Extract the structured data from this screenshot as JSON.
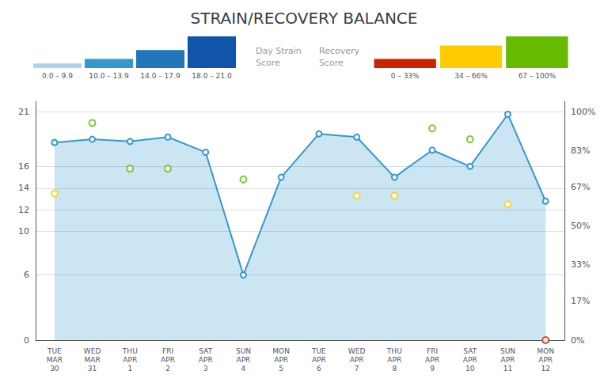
{
  "chart_data": {
    "type": "line",
    "title": "STRAIN/RECOVERY BALANCE",
    "categories": [
      "TUE\nMAR\n30",
      "WED\nMAR\n31",
      "THU\nAPR\n1",
      "FRI\nAPR\n2",
      "SAT\nAPR\n3",
      "SUN\nAPR\n4",
      "MON\nAPR\n5",
      "TUE\nAPR\n6",
      "WED\nAPR\n7",
      "THU\nAPR\n8",
      "FRI\nAPR\n9",
      "SAT\nAPR\n10",
      "SUN\nAPR\n11",
      "MON\nAPR\n12"
    ],
    "series": [
      {
        "name": "Day Strain\nScore",
        "color": "#3399cc",
        "values": [
          18.2,
          18.5,
          18.3,
          18.7,
          17.3,
          6.0,
          15.0,
          19.0,
          18.7,
          15.0,
          17.5,
          16.0,
          20.8,
          12.8
        ],
        "scale": [
          {
            "label": "0.0 – 9.9",
            "color": "#aad4ee",
            "height": 1
          },
          {
            "label": "10.0 – 13.9",
            "color": "#3399cc",
            "height": 2
          },
          {
            "label": "14.0 – 17.9",
            "color": "#2277bb",
            "height": 4
          },
          {
            "label": "18.0 – 21.0",
            "color": "#1155aa",
            "height": 7
          }
        ]
      },
      {
        "name": "Recovery\nScore",
        "type": "scatter",
        "values": [
          13.5,
          20.0,
          15.8,
          15.8,
          null,
          14.8,
          null,
          null,
          13.3,
          13.3,
          19.5,
          18.5,
          12.5,
          0.0
        ],
        "colors": [
          "#ffcc00",
          "#66bb00",
          "#66bb00",
          "#66bb00",
          null,
          "#66bb00",
          null,
          null,
          "#ffcc00",
          "#ffcc00",
          "#66bb00",
          "#66bb00",
          "#ffcc00",
          "#cc2200"
        ],
        "scale": [
          {
            "label": "0 – 33%",
            "color": "#cc2200",
            "height": 2
          },
          {
            "label": "34 – 66%",
            "color": "#ffcc00",
            "height": 5
          },
          {
            "label": "67 – 100%",
            "color": "#66bb00",
            "height": 7
          }
        ]
      }
    ],
    "ylim": [
      0,
      22
    ],
    "yticks": [
      0,
      6,
      10,
      12,
      14,
      16,
      21
    ],
    "y2lim": [
      0,
      104.76190476190476
    ],
    "y2ticks": [
      {
        "value": 0,
        "label": "0%"
      },
      {
        "value": 17,
        "label": "17%"
      },
      {
        "value": 33,
        "label": "33%"
      },
      {
        "value": 50,
        "label": "50%"
      },
      {
        "value": 67,
        "label": "67%"
      },
      {
        "value": 83,
        "label": "83%"
      },
      {
        "value": 100,
        "label": "100%"
      }
    ],
    "grid": true
  }
}
